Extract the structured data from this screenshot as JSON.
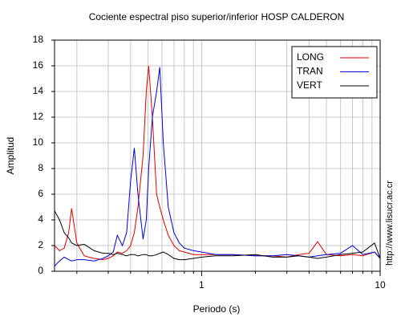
{
  "chart_data": {
    "type": "line",
    "title": "Cociente espectral piso superior/inferior  HOSP CALDERON",
    "x_label": "Periodo (s)",
    "y_label": "Amplitud",
    "annotation": "http://www.lisucr.ac.cr",
    "x_log": true,
    "grid": true,
    "legend_position": "upper right",
    "xlim": [
      0.15,
      10
    ],
    "xticks": [
      1,
      10
    ],
    "xminor_ticks": [
      0.2,
      0.3,
      0.4,
      0.5,
      0.6,
      0.7,
      0.8,
      0.9,
      2,
      3,
      4,
      5,
      6,
      7,
      8,
      9
    ],
    "ylim": [
      0,
      18
    ],
    "yticks": [
      0,
      2,
      4,
      6,
      8,
      10,
      12,
      14,
      16,
      18
    ],
    "x": [
      0.15,
      0.16,
      0.17,
      0.18,
      0.187,
      0.2,
      0.22,
      0.25,
      0.28,
      0.3,
      0.32,
      0.337,
      0.36,
      0.38,
      0.4,
      0.42,
      0.44,
      0.47,
      0.49,
      0.505,
      0.53,
      0.56,
      0.583,
      0.61,
      0.65,
      0.7,
      0.75,
      0.8,
      0.9,
      1,
      1.2,
      1.5,
      2,
      2.5,
      3,
      3.5,
      4,
      4.46,
      5,
      6,
      7,
      8,
      9.3,
      10
    ],
    "series": [
      {
        "name": "LONG",
        "color": "#e00000",
        "values": [
          2,
          1.6,
          1.8,
          3,
          4.9,
          2.2,
          1.2,
          1,
          0.9,
          1,
          1.2,
          1.5,
          1.4,
          1.6,
          2,
          3,
          5,
          9,
          14,
          16,
          12,
          6,
          5,
          4,
          2.8,
          2,
          1.6,
          1.5,
          1.3,
          1.3,
          1.3,
          1.3,
          1.2,
          1.2,
          1.1,
          1.3,
          1.4,
          2.3,
          1.3,
          1.2,
          1.3,
          1.2,
          1.5,
          1
        ]
      },
      {
        "name": "TRAN",
        "color": "#0000e0",
        "values": [
          0.4,
          0.8,
          1.1,
          0.9,
          0.8,
          0.9,
          0.9,
          0.8,
          1,
          1.2,
          1.5,
          2.8,
          2,
          3,
          7,
          9.6,
          6,
          2.5,
          4,
          8,
          12,
          14,
          15.9,
          10,
          5,
          3,
          2.2,
          1.8,
          1.6,
          1.5,
          1.3,
          1.3,
          1.2,
          1.2,
          1.3,
          1.2,
          1.1,
          1.2,
          1.3,
          1.4,
          2,
          1.3,
          1.5,
          1
        ]
      },
      {
        "name": "VERT",
        "color": "#000000",
        "values": [
          4.7,
          4,
          3,
          2.6,
          2.2,
          2,
          2.1,
          1.6,
          1.4,
          1.4,
          1.3,
          1.4,
          1.3,
          1.2,
          1.3,
          1.3,
          1.2,
          1.3,
          1.3,
          1.2,
          1.2,
          1.3,
          1.4,
          1.5,
          1.3,
          1,
          0.9,
          0.9,
          1,
          1.1,
          1.2,
          1.2,
          1.3,
          1.1,
          1.1,
          1.2,
          1.1,
          1,
          1.1,
          1.3,
          1.4,
          1.5,
          2.2,
          1
        ]
      }
    ]
  }
}
